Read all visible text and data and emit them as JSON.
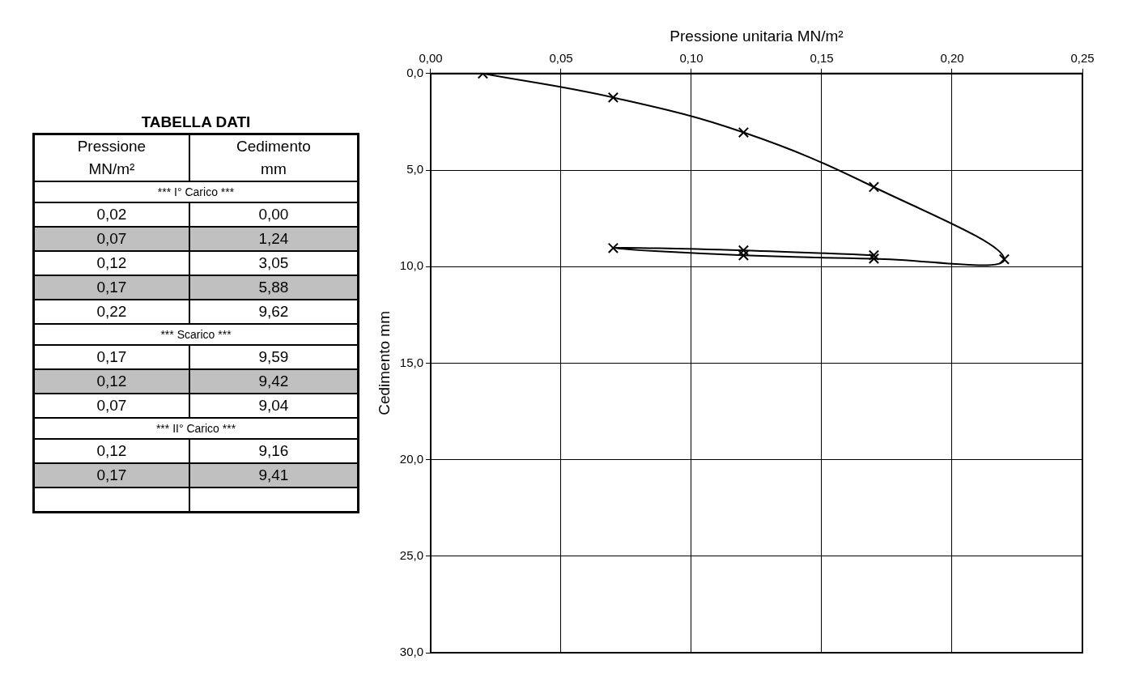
{
  "chart_data": {
    "type": "line",
    "xlabel": "Pressione unitaria MN/m²",
    "ylabel": "Cedimento mm",
    "x": [
      0.02,
      0.07,
      0.12,
      0.17,
      0.22,
      0.17,
      0.12,
      0.07,
      0.12,
      0.17
    ],
    "series": [
      {
        "color": "#000000",
        "values": [
          0,
          1.24,
          3.05,
          5.88,
          9.62,
          9.59,
          9.42,
          9.04,
          9.16,
          9.41
        ]
      }
    ],
    "xlim": [
      0,
      0.25
    ],
    "xticks": [
      {
        "value": 0,
        "label": "0,00"
      },
      {
        "value": 0.05,
        "label": "0,05"
      },
      {
        "value": 0.1,
        "label": "0,10"
      },
      {
        "value": 0.15,
        "label": "0,15"
      },
      {
        "value": 0.2,
        "label": "0,20"
      },
      {
        "value": 0.25,
        "label": "0,25"
      }
    ],
    "ylim": [
      30,
      0
    ],
    "yticks": [
      {
        "value": 0,
        "label": "0,0"
      },
      {
        "value": 5,
        "label": "5,0"
      },
      {
        "value": 10,
        "label": "10,0"
      },
      {
        "value": 15,
        "label": "15,0"
      },
      {
        "value": 20,
        "label": "20,0"
      },
      {
        "value": 25,
        "label": "25,0"
      },
      {
        "value": 30,
        "label": "30,0"
      }
    ],
    "grid": true,
    "marker": "cross",
    "line_style": "solid",
    "legend": false,
    "annotations": [
      "TABELLA DATI",
      "Pressione",
      "Cedimento",
      "MN/m²",
      "mm",
      "*** I° Carico ***",
      "0,02",
      "0,00",
      "0,07",
      "1,24",
      "0,12",
      "3,05",
      "0,17",
      "5,88",
      "0,22",
      "9,62",
      "*** Scarico ***",
      "0,17",
      "9,59",
      "0,12",
      "9,42",
      "0,07",
      "9,04",
      "*** II° Carico ***",
      "0,12",
      "9,16",
      "0,17",
      "9,41"
    ]
  }
}
